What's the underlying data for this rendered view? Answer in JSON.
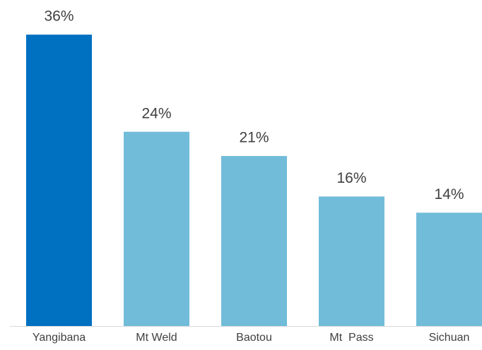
{
  "chart_data": {
    "type": "bar",
    "categories": [
      "Yangibana",
      "Mt Weld",
      "Baotou",
      "Mt  Pass",
      "Sichuan"
    ],
    "values": [
      36,
      24,
      21,
      16,
      14
    ],
    "value_labels": [
      "36%",
      "24%",
      "21%",
      "16%",
      "14%"
    ],
    "colors": [
      "#0070c0",
      "#70bcd9",
      "#70bcd9",
      "#70bcd9",
      "#70bcd9"
    ]
  }
}
